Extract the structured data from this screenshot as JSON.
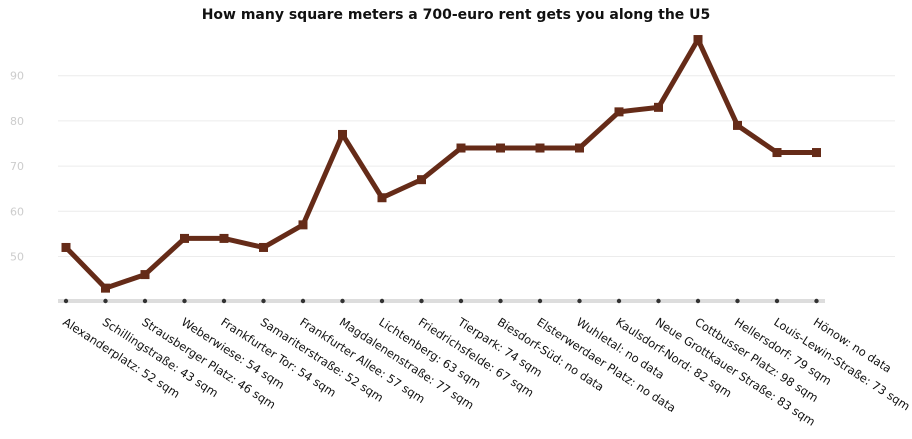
{
  "chart_data": {
    "type": "line",
    "title": "How many square meters a 700-euro rent gets you along the U5",
    "xlabel": "",
    "ylabel": "",
    "ylim": [
      40,
      100
    ],
    "yticks": [
      50,
      60,
      70,
      80,
      90
    ],
    "grid": true,
    "legend": "none",
    "categories": [
      "Alexanderplatz: 52 sqm",
      "Schillingstraße: 43 sqm",
      "Strausberger Platz: 46 sqm",
      "Weberwiese: 54 sqm",
      "Frankfurter Tor: 54 sqm",
      "Samariterstraße: 52 sqm",
      "Frankfurter Allee: 57 sqm",
      "Magdalenenstraße: 77 sqm",
      "Lichtenberg: 63 sqm",
      "Friedrichsfelde: 67 sqm",
      "Tierpark: 74 sqm",
      "Biesdorf-Süd: no data",
      "Elsterwerdaer Platz: no data",
      "Wuhletal: no data",
      "Kaulsdorf-Nord: 82 sqm",
      "Neue Grottkauer Straße: 83 sqm",
      "Cottbusser Platz: 98 sqm",
      "Hellersdorf: 79 sqm",
      "Louis-Lewin-Straße: 73 sqm",
      "Hönow: no data"
    ],
    "series": [
      {
        "values": [
          52,
          43,
          46,
          54,
          54,
          52,
          57,
          77,
          63,
          67,
          74,
          74,
          74,
          74,
          82,
          83,
          98,
          79,
          73,
          73
        ],
        "color": "#652b18"
      }
    ],
    "axis_color": "#dddddd",
    "axis_dot_color": "#333333"
  }
}
